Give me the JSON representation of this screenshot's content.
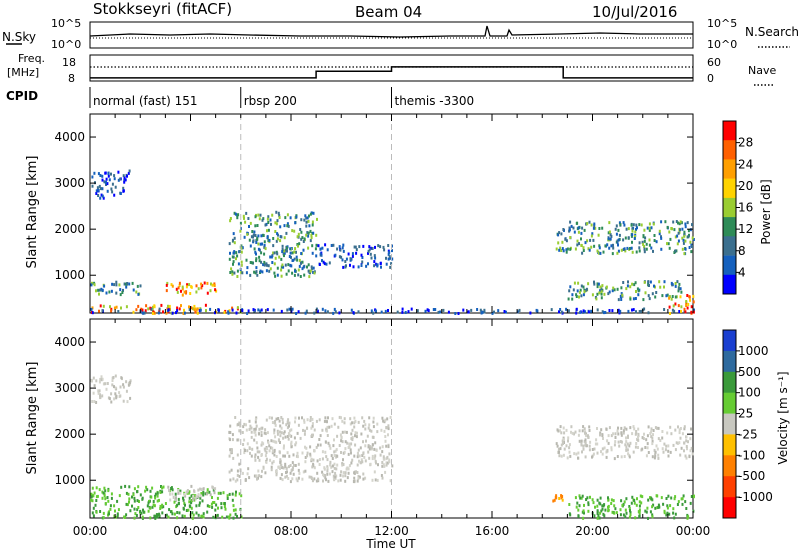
{
  "header": {
    "station": "Stokkseyri (fitACF)",
    "beam": "Beam 04",
    "date": "10/Jul/2016"
  },
  "noise_panel": {
    "left_label": "N.Sky",
    "right_label": "N.Search",
    "y_ticks": [
      "10^5",
      "10^0"
    ]
  },
  "freq_panel": {
    "left_label_line1": "Freq.",
    "left_label_line2": "[MHz]",
    "left_ticks": [
      "18",
      "8"
    ],
    "right_label": "Nave",
    "right_ticks": [
      "60",
      "0"
    ],
    "nave_segments": [
      {
        "from": "00:00",
        "to": "09:00",
        "level": 0.05
      },
      {
        "from": "09:00",
        "to": "12:00",
        "level": 0.35
      },
      {
        "from": "12:00",
        "to": "18:50",
        "level": 0.55
      },
      {
        "from": "18:50",
        "to": "24:00",
        "level": 0.05
      }
    ]
  },
  "cpid_panel": {
    "label": "CPID",
    "segments": [
      {
        "start": "00:00",
        "label": "normal (fast) 151"
      },
      {
        "start": "06:00",
        "label": "rbsp 200"
      },
      {
        "start": "12:00",
        "label": "themis -3300"
      }
    ]
  },
  "chart_data": [
    {
      "type": "heatmap",
      "name": "power",
      "ylabel": "Slant Range [km]",
      "ylim": [
        180,
        4500
      ],
      "y_ticks": [
        1000,
        2000,
        3000,
        4000
      ],
      "colorbar_label": "Power [dB]",
      "colorbar_ticks": [
        "28",
        "24",
        "20",
        "16",
        "12",
        "8",
        "4"
      ],
      "colorbar_colors": [
        "#ff0000",
        "#ff6000",
        "#ff9f00",
        "#ffd300",
        "#9acd32",
        "#2e8b57",
        "#3b6f8e",
        "#1560bd",
        "#0000ff"
      ],
      "echo_regions": [
        {
          "t_start": 0.0,
          "t_end": 6.0,
          "r_start": 200,
          "r_end": 380,
          "level": "high"
        },
        {
          "t_start": 0.0,
          "t_end": 24.0,
          "r_start": 200,
          "r_end": 300,
          "level": "low"
        },
        {
          "t_start": 0.0,
          "t_end": 2.0,
          "r_start": 600,
          "r_end": 900,
          "level": "mid"
        },
        {
          "t_start": 3.0,
          "t_end": 5.0,
          "r_start": 600,
          "r_end": 900,
          "level": "high"
        },
        {
          "t_start": 0.0,
          "t_end": 1.6,
          "r_start": 2700,
          "r_end": 3300,
          "level": "low"
        },
        {
          "t_start": 5.5,
          "t_end": 9.0,
          "r_start": 1000,
          "r_end": 2400,
          "level": "mid"
        },
        {
          "t_start": 9.0,
          "t_end": 12.0,
          "r_start": 1200,
          "r_end": 1700,
          "level": "low"
        },
        {
          "t_start": 18.5,
          "t_end": 24.0,
          "r_start": 1500,
          "r_end": 2200,
          "level": "mid"
        },
        {
          "t_start": 19.0,
          "t_end": 23.5,
          "r_start": 500,
          "r_end": 900,
          "level": "mid"
        },
        {
          "t_start": 23.0,
          "t_end": 24.0,
          "r_start": 200,
          "r_end": 600,
          "level": "high"
        }
      ]
    },
    {
      "type": "heatmap",
      "name": "velocity",
      "ylabel": "Slant Range [km]",
      "ylim": [
        180,
        4500
      ],
      "y_ticks": [
        1000,
        2000,
        3000,
        4000
      ],
      "colorbar_label": "Velocity [m s⁻¹]",
      "colorbar_ticks": [
        "1000",
        "500",
        "100",
        "25",
        "-25",
        "-100",
        "-500",
        "-1000"
      ],
      "colorbar_colors": [
        "#1a3fd0",
        "#2e6a9e",
        "#3a9a3a",
        "#66cc33",
        "#c8c8c0",
        "#ffc000",
        "#ff8000",
        "#ff4000",
        "#ff0000"
      ],
      "echo_regions": [
        {
          "t_start": 0.0,
          "t_end": 6.0,
          "r_start": 200,
          "r_end": 900,
          "level": "green"
        },
        {
          "t_start": 3.0,
          "t_end": 5.0,
          "r_start": 600,
          "r_end": 900,
          "level": "grey"
        },
        {
          "t_start": 0.0,
          "t_end": 1.6,
          "r_start": 2700,
          "r_end": 3300,
          "level": "grey"
        },
        {
          "t_start": 5.5,
          "t_end": 12.0,
          "r_start": 1000,
          "r_end": 2400,
          "level": "grey"
        },
        {
          "t_start": 18.5,
          "t_end": 24.0,
          "r_start": 1500,
          "r_end": 2200,
          "level": "grey"
        },
        {
          "t_start": 18.4,
          "t_end": 18.8,
          "r_start": 550,
          "r_end": 700,
          "level": "orange"
        },
        {
          "t_start": 19.0,
          "t_end": 24.0,
          "r_start": 200,
          "r_end": 700,
          "level": "green"
        }
      ]
    }
  ],
  "x_axis": {
    "label": "Time UT",
    "ticks": [
      "00:00",
      "04:00",
      "08:00",
      "12:00",
      "16:00",
      "20:00",
      "00:00"
    ]
  }
}
